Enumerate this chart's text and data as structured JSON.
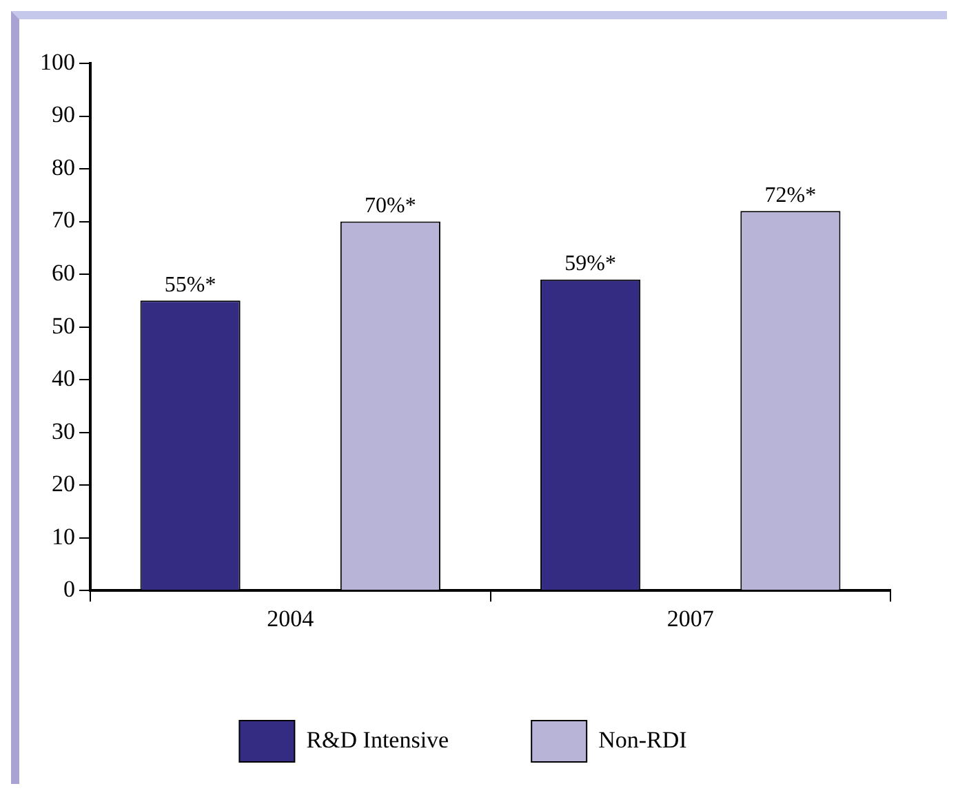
{
  "chart_data": {
    "type": "bar",
    "categories": [
      "2004",
      "2007"
    ],
    "series": [
      {
        "name": "R&D Intensive",
        "color": "#332c82",
        "values": [
          55,
          59
        ],
        "value_labels": [
          "55%*",
          "59%*"
        ]
      },
      {
        "name": "Non-RDI",
        "color": "#b8b4d8",
        "values": [
          70,
          72
        ],
        "value_labels": [
          "70%*",
          "72%*"
        ]
      }
    ],
    "ylim": [
      0,
      100
    ],
    "yticks": [
      0,
      10,
      20,
      30,
      40,
      50,
      60,
      70,
      80,
      90,
      100
    ],
    "grid": false,
    "legend": "bottom"
  }
}
